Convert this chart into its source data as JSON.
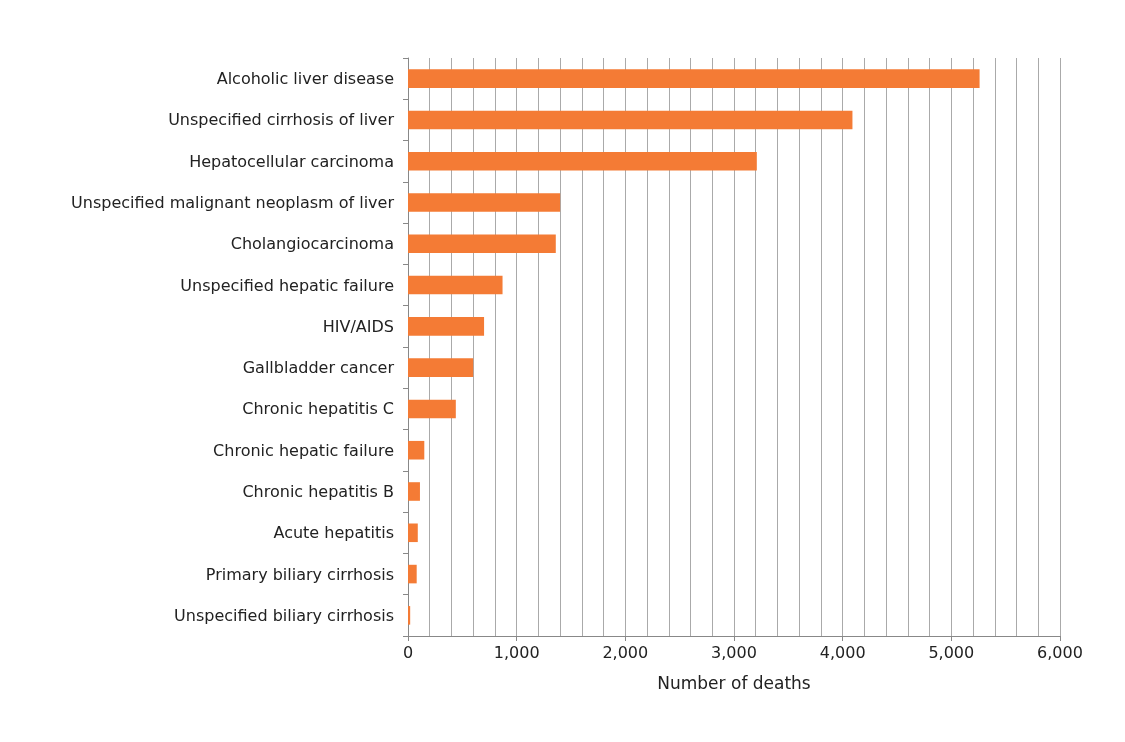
{
  "chart_data": {
    "type": "bar",
    "orientation": "horizontal",
    "xlabel": "Number of deaths",
    "categories": [
      "Alcoholic liver disease",
      "Unspecified cirrhosis of liver",
      "Hepatocellular carcinoma",
      "Unspecified malignant neoplasm of liver",
      "Cholangiocarcinoma",
      "Unspecified hepatic failure",
      "HIV/AIDS",
      "Gallbladder cancer",
      "Chronic hepatitis C",
      "Chronic hepatic failure",
      "Chronic hepatitis B",
      "Acute hepatitis",
      "Primary biliary cirrhosis",
      "Unspecified biliary cirrhosis"
    ],
    "values": [
      5260,
      4090,
      3210,
      1400,
      1360,
      870,
      700,
      600,
      440,
      150,
      110,
      90,
      80,
      20
    ],
    "color": "#f47b35",
    "xlim": [
      0,
      6000
    ],
    "xticks": [
      0,
      {
        "value": 200,
        "label": null
      },
      {
        "value": 400,
        "label": null
      },
      {
        "value": 600,
        "label": null
      },
      {
        "value": 800,
        "label": null
      },
      {
        "value": 1000,
        "label": "1,000"
      },
      {
        "value": 1200,
        "label": null
      },
      {
        "value": 1400,
        "label": null
      },
      {
        "value": 1600,
        "label": null
      },
      {
        "value": 1800,
        "label": null
      },
      {
        "value": 2000,
        "label": "2,000"
      },
      {
        "value": 2200,
        "label": null
      },
      {
        "value": 2400,
        "label": null
      },
      {
        "value": 2600,
        "label": null
      },
      {
        "value": 2800,
        "label": null
      },
      {
        "value": 3000,
        "label": "3,000"
      },
      {
        "value": 3200,
        "label": null
      },
      {
        "value": 3400,
        "label": null
      },
      {
        "value": 3600,
        "label": null
      },
      {
        "value": 3800,
        "label": null
      },
      {
        "value": 4000,
        "label": "4,000"
      },
      {
        "value": 4200,
        "label": null
      },
      {
        "value": 4400,
        "label": null
      },
      {
        "value": 4600,
        "label": null
      },
      {
        "value": 4800,
        "label": null
      },
      {
        "value": 5000,
        "label": "5,000"
      },
      {
        "value": 5200,
        "label": null
      },
      {
        "value": 5400,
        "label": null
      },
      {
        "value": 5600,
        "label": null
      },
      {
        "value": 5800,
        "label": null
      },
      {
        "value": 6000,
        "label": "6,000"
      }
    ],
    "grid": "x"
  }
}
